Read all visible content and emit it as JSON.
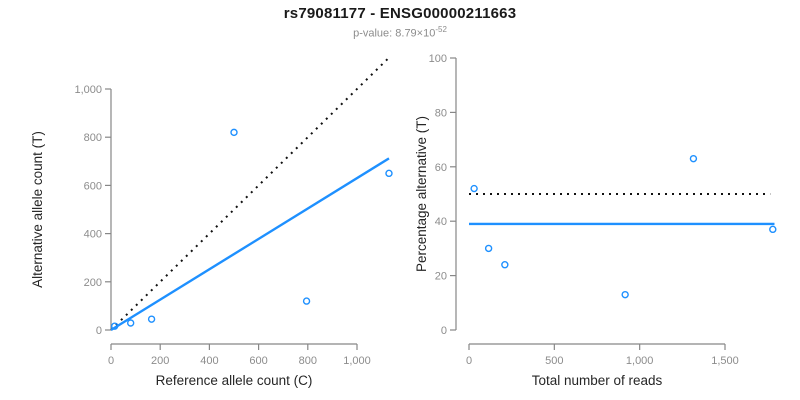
{
  "header": {
    "title": "rs79081177 - ENSG00000211663",
    "p_value_text": "p-value: 8.79×10",
    "p_value_exponent": "-52"
  },
  "colors": {
    "accent_blue": "#1e90ff",
    "axis_line": "#878787",
    "tick_label": "#8c8c8c",
    "axis_title": "#262626",
    "reference_line": "#111111"
  },
  "chart_data": [
    {
      "type": "scatter",
      "panel": "left",
      "xlabel": "Reference allele count (C)",
      "ylabel": "Alternative allele count (T)",
      "xtick_values": [
        0,
        200,
        400,
        600,
        800,
        1000
      ],
      "xtick_labels": [
        "0",
        "200",
        "400",
        "600",
        "800",
        "1,000"
      ],
      "ytick_values": [
        0,
        200,
        400,
        600,
        800,
        1000
      ],
      "ytick_labels": [
        "0",
        "200",
        "400",
        "600",
        "800",
        "1,000"
      ],
      "xlim": [
        0,
        1160
      ],
      "ylim": [
        0,
        1160
      ],
      "points": [
        [
          15,
          16
        ],
        [
          80,
          29
        ],
        [
          165,
          45
        ],
        [
          500,
          820
        ],
        [
          795,
          120
        ],
        [
          1130,
          650
        ]
      ],
      "lines": [
        {
          "name": "identity-line",
          "style": "dotted",
          "color_key": "reference_line",
          "from": [
            0,
            0
          ],
          "to": [
            1135,
            1135
          ]
        },
        {
          "name": "fit-line",
          "style": "solid",
          "color_key": "accent_blue",
          "from": [
            0,
            0
          ],
          "to": [
            1130,
            712
          ]
        }
      ]
    },
    {
      "type": "scatter",
      "panel": "right",
      "xlabel": "Total number of reads",
      "ylabel": "Percentage alternative (T)",
      "xtick_values": [
        0,
        500,
        1000,
        1500
      ],
      "xtick_labels": [
        "0",
        "500",
        "1,000",
        "1,500"
      ],
      "ytick_values": [
        0,
        20,
        40,
        60,
        80,
        100
      ],
      "ytick_labels": [
        "0",
        "20",
        "40",
        "60",
        "80",
        "100"
      ],
      "xlim": [
        0,
        1790
      ],
      "ylim": [
        0,
        100
      ],
      "points": [
        [
          30,
          52
        ],
        [
          115,
          30
        ],
        [
          210,
          24
        ],
        [
          915,
          13
        ],
        [
          1315,
          63
        ],
        [
          1780,
          37
        ]
      ],
      "lines": [
        {
          "name": "expected-50pct-line",
          "style": "dotted",
          "color_key": "reference_line",
          "from": [
            0,
            50
          ],
          "to": [
            1765,
            50
          ]
        },
        {
          "name": "mean-pct-line",
          "style": "solid",
          "color_key": "accent_blue",
          "from": [
            0,
            39
          ],
          "to": [
            1790,
            39
          ]
        }
      ]
    }
  ]
}
